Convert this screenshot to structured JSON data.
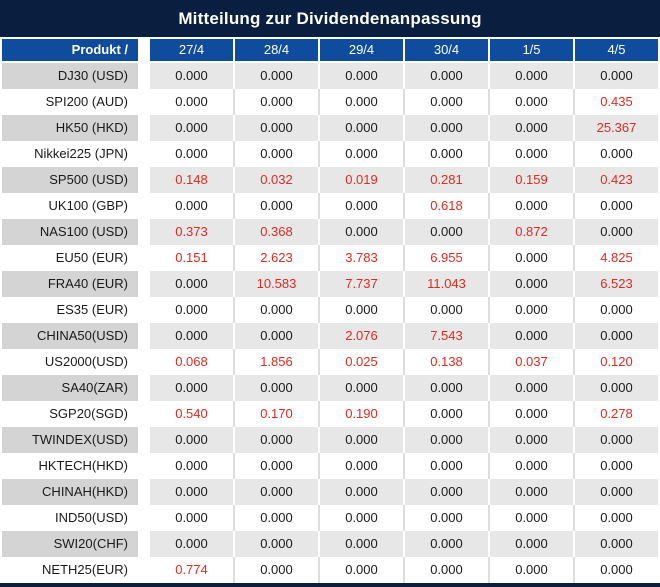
{
  "colors": {
    "navy": "#0a1e3f",
    "header_blue": "#0f4c9e",
    "row_gray": "#e7e7e7",
    "product_gray": "#d4d4d4",
    "separator_gray": "#dedede",
    "value_red": "#df2b20",
    "text_dark": "#1a1a1a"
  },
  "chart_data": {
    "type": "table",
    "title": "Mitteilung zur Dividendenanpassung",
    "columns": [
      "Produkt /",
      "27/4",
      "28/4",
      "29/4",
      "30/4",
      "1/5",
      "4/5"
    ],
    "zero_display": "0.000",
    "highlight_rule": "non-zero values are rendered in red",
    "rows": [
      {
        "product": "DJ30 (USD)",
        "values": [
          "0.000",
          "0.000",
          "0.000",
          "0.000",
          "0.000",
          "0.000"
        ]
      },
      {
        "product": "SPI200 (AUD)",
        "values": [
          "0.000",
          "0.000",
          "0.000",
          "0.000",
          "0.000",
          "0.435"
        ]
      },
      {
        "product": "HK50 (HKD)",
        "values": [
          "0.000",
          "0.000",
          "0.000",
          "0.000",
          "0.000",
          "25.367"
        ]
      },
      {
        "product": "Nikkei225 (JPN)",
        "values": [
          "0.000",
          "0.000",
          "0.000",
          "0.000",
          "0.000",
          "0.000"
        ]
      },
      {
        "product": "SP500 (USD)",
        "values": [
          "0.148",
          "0.032",
          "0.019",
          "0.281",
          "0.159",
          "0.423"
        ]
      },
      {
        "product": "UK100 (GBP)",
        "values": [
          "0.000",
          "0.000",
          "0.000",
          "0.618",
          "0.000",
          "0.000"
        ]
      },
      {
        "product": "NAS100 (USD)",
        "values": [
          "0.373",
          "0.368",
          "0.000",
          "0.000",
          "0.872",
          "0.000"
        ]
      },
      {
        "product": "EU50 (EUR)",
        "values": [
          "0.151",
          "2.623",
          "3.783",
          "6.955",
          "0.000",
          "4.825"
        ]
      },
      {
        "product": "FRA40 (EUR)",
        "values": [
          "0.000",
          "10.583",
          "7.737",
          "11.043",
          "0.000",
          "6.523"
        ]
      },
      {
        "product": "ES35 (EUR)",
        "values": [
          "0.000",
          "0.000",
          "0.000",
          "0.000",
          "0.000",
          "0.000"
        ]
      },
      {
        "product": "CHINA50(USD)",
        "values": [
          "0.000",
          "0.000",
          "2.076",
          "7.543",
          "0.000",
          "0.000"
        ]
      },
      {
        "product": "US2000(USD)",
        "values": [
          "0.068",
          "1.856",
          "0.025",
          "0.138",
          "0.037",
          "0.120"
        ]
      },
      {
        "product": "SA40(ZAR)",
        "values": [
          "0.000",
          "0.000",
          "0.000",
          "0.000",
          "0.000",
          "0.000"
        ]
      },
      {
        "product": "SGP20(SGD)",
        "values": [
          "0.540",
          "0.170",
          "0.190",
          "0.000",
          "0.000",
          "0.278"
        ]
      },
      {
        "product": "TWINDEX(USD)",
        "values": [
          "0.000",
          "0.000",
          "0.000",
          "0.000",
          "0.000",
          "0.000"
        ]
      },
      {
        "product": "HKTECH(HKD)",
        "values": [
          "0.000",
          "0.000",
          "0.000",
          "0.000",
          "0.000",
          "0.000"
        ]
      },
      {
        "product": "CHINAH(HKD)",
        "values": [
          "0.000",
          "0.000",
          "0.000",
          "0.000",
          "0.000",
          "0.000"
        ]
      },
      {
        "product": "IND50(USD)",
        "values": [
          "0.000",
          "0.000",
          "0.000",
          "0.000",
          "0.000",
          "0.000"
        ]
      },
      {
        "product": "SWI20(CHF)",
        "values": [
          "0.000",
          "0.000",
          "0.000",
          "0.000",
          "0.000",
          "0.000"
        ]
      },
      {
        "product": "NETH25(EUR)",
        "values": [
          "0.774",
          "0.000",
          "0.000",
          "0.000",
          "0.000",
          "0.000"
        ]
      }
    ]
  }
}
